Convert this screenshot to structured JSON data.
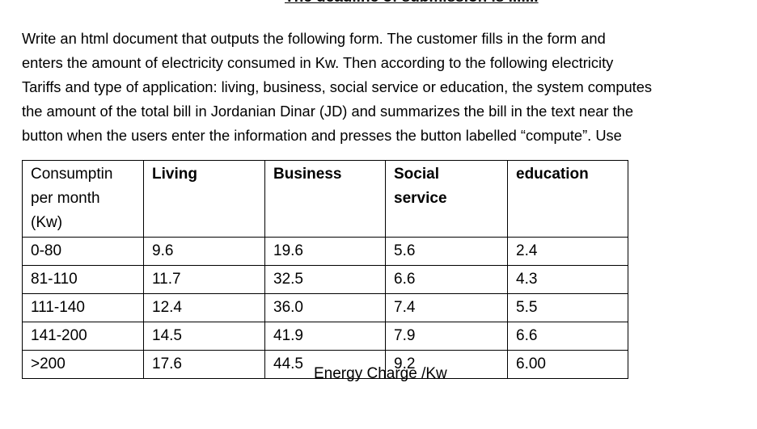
{
  "header": {
    "title": "The deadline of submission is ......."
  },
  "paragraph": {
    "lines": [
      "Write an html document that outputs the following form. The customer fills in the form and",
      "enters the amount of electricity consumed in Kw. Then according to the following electricity",
      "Tariffs and type of application: living, business, social service or education, the system computes",
      "the amount of the total bill in Jordanian Dinar (JD) and summarizes the bill in the text near the",
      "button when the users enter the information and presses the button labelled “compute”. Use"
    ]
  },
  "table": {
    "columns": [
      [
        "Consumptin",
        "per month",
        "(Kw)"
      ],
      [
        "Living"
      ],
      [
        "Business"
      ],
      [
        "Social",
        "service"
      ],
      [
        "education"
      ]
    ],
    "rows": [
      [
        "0-80",
        "9.6",
        "19.6",
        "5.6",
        "2.4"
      ],
      [
        "81-110",
        "11.7",
        "32.5",
        "6.6",
        "4.3"
      ],
      [
        "111-140",
        "12.4",
        "36.0",
        "7.4",
        "5.5"
      ],
      [
        "141-200",
        "14.5",
        "41.9",
        "7.9",
        "6.6"
      ],
      [
        ">200",
        "17.6",
        "44.5",
        "9.2",
        "6.00"
      ]
    ],
    "caption": "Energy Charge /Kw"
  }
}
